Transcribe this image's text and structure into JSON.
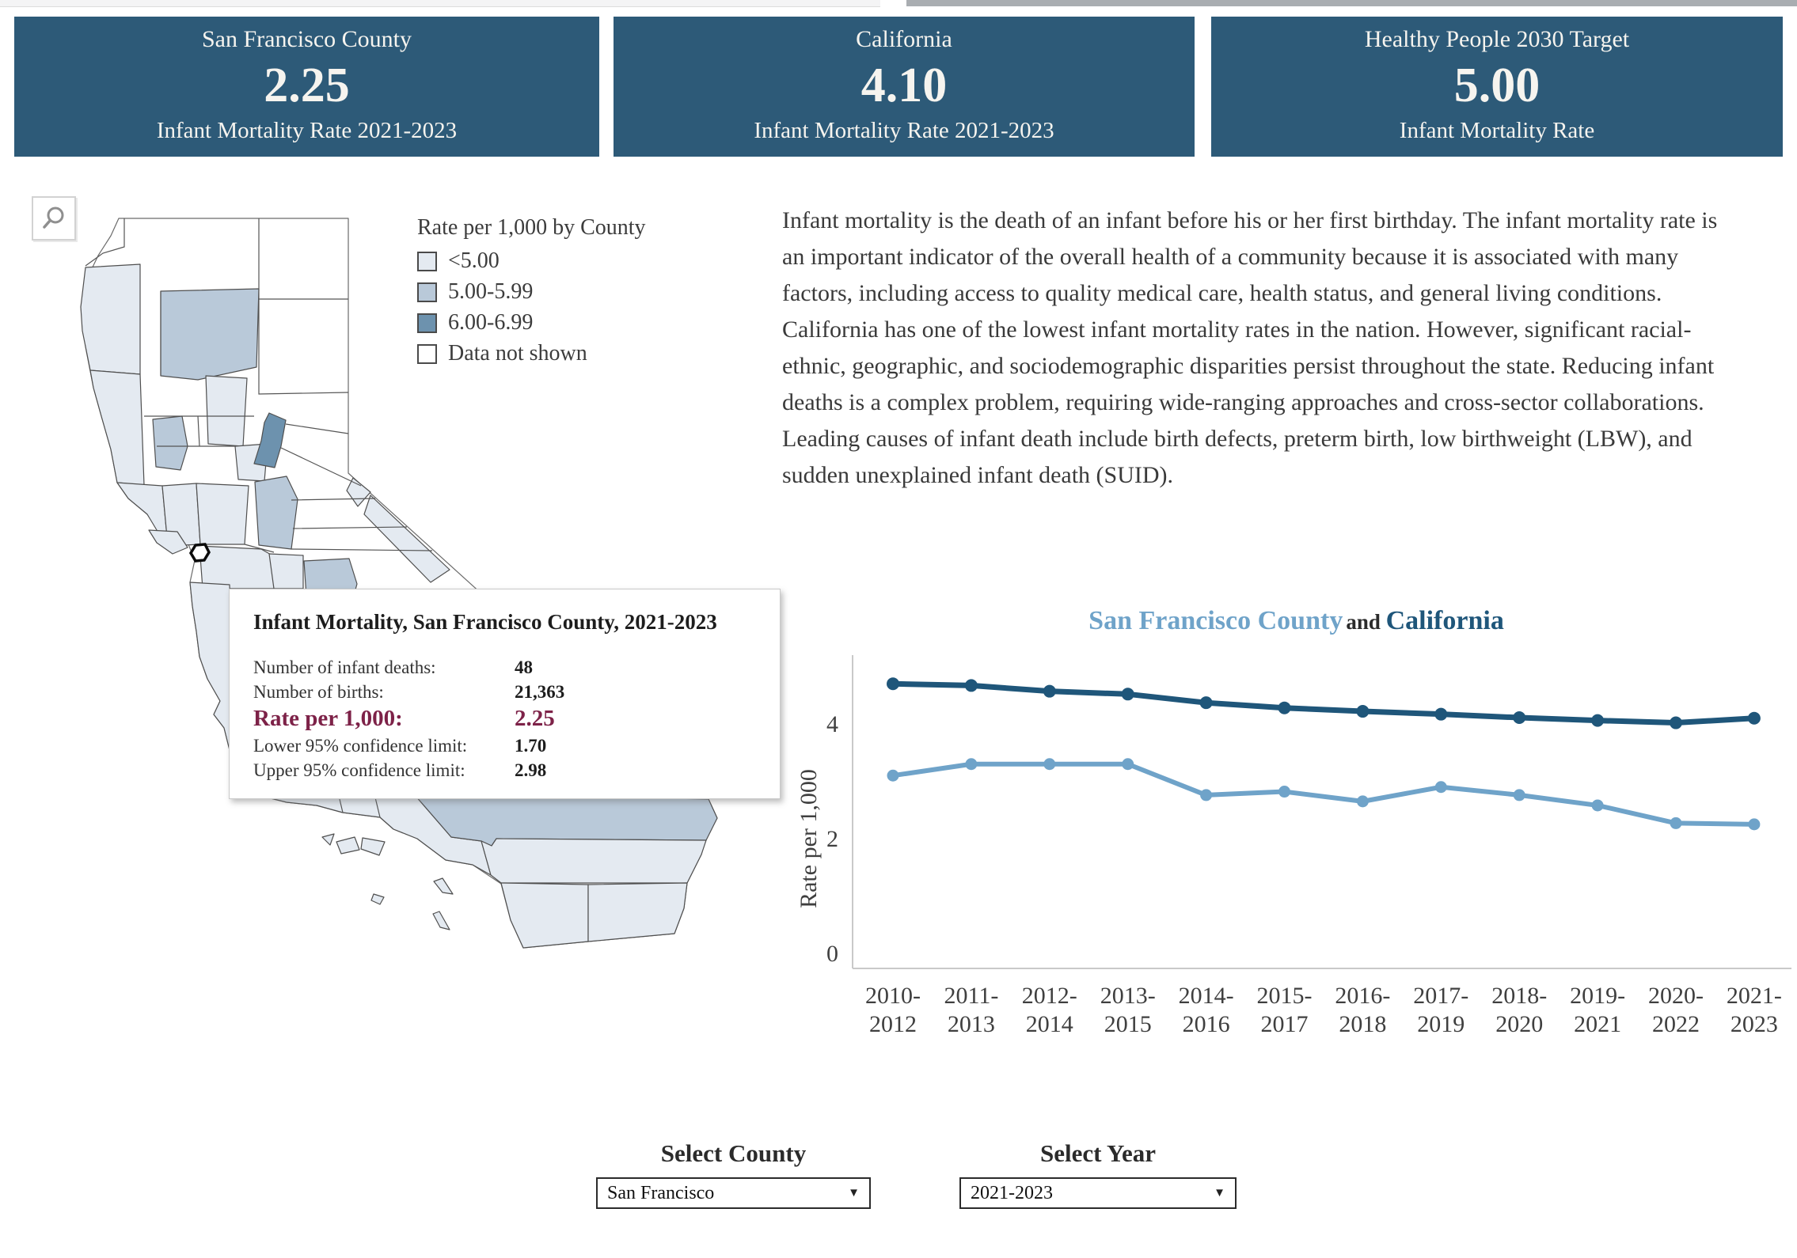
{
  "theme": {
    "card_bg": "#2d5a78",
    "accent_dark": "#1f567a",
    "accent_light": "#6fa3c9",
    "rate_highlight": "#7d2248"
  },
  "top_cards": [
    {
      "title": "San Francisco County",
      "value": "2.25",
      "subtitle": "Infant Mortality Rate 2021-2023"
    },
    {
      "title": "California",
      "value": "4.10",
      "subtitle": "Infant Mortality Rate 2021-2023"
    },
    {
      "title": "Healthy People 2030 Target",
      "value": "5.00",
      "subtitle": "Infant Mortality Rate"
    }
  ],
  "map": {
    "search_icon": "magnifier",
    "legend": {
      "title": "Rate per 1,000 by County",
      "items": [
        {
          "label": "<5.00",
          "color": "#e4eaf1"
        },
        {
          "label": "5.00-5.99",
          "color": "#b9c9d9"
        },
        {
          "label": "6.00-6.99",
          "color": "#6d92ae"
        },
        {
          "label": "Data not shown",
          "color": "#ffffff"
        }
      ]
    },
    "tooltip": {
      "title": "Infant Mortality, San Francisco County, 2021-2023",
      "rows": [
        {
          "label": "Number of infant deaths:",
          "value": "48",
          "highlight": false
        },
        {
          "label": "Number of births:",
          "value": "21,363",
          "highlight": false
        },
        {
          "label": "Rate per 1,000:",
          "value": "2.25",
          "highlight": true
        },
        {
          "label": "Lower 95% confidence limit:",
          "value": "1.70",
          "highlight": false
        },
        {
          "label": "Upper 95% confidence limit:",
          "value": "2.98",
          "highlight": false
        }
      ]
    }
  },
  "description": "Infant mortality is the death of an infant before his or her first birthday. The infant mortality rate is an important indicator of the overall health of a community because it is associated with many factors, including access to quality medical care, health status, and general living conditions. California has one of the lowest infant mortality rates in the nation. However, significant racial-ethnic, geographic, and sociodemographic disparities persist throughout the state. Reducing infant deaths is a complex problem, requiring wide-ranging approaches and cross-sector collaborations. Leading causes of infant death include birth defects, preterm birth, low birthweight (LBW), and sudden unexplained infant death (SUID).",
  "chart_data": {
    "type": "line",
    "title": {
      "series1": "San Francisco County",
      "conjunction": "and",
      "series2": "California"
    },
    "ylabel": "Rate per 1,000",
    "xlabel": "",
    "yticks": [
      0,
      2,
      4
    ],
    "ylim": [
      0,
      5.2
    ],
    "grid": false,
    "legend_position": "in-title",
    "categories": [
      "2010-2012",
      "2011-2013",
      "2012-2014",
      "2013-2015",
      "2014-2016",
      "2015-2017",
      "2016-2018",
      "2017-2019",
      "2018-2020",
      "2019-2021",
      "2020-2022",
      "2021-2023"
    ],
    "series": [
      {
        "name": "California",
        "color": "#1f567a",
        "values": [
          4.7,
          4.67,
          4.57,
          4.52,
          4.37,
          4.28,
          4.22,
          4.17,
          4.11,
          4.06,
          4.02,
          4.1
        ]
      },
      {
        "name": "San Francisco County",
        "color": "#6fa3c9",
        "values": [
          3.1,
          3.3,
          3.3,
          3.3,
          2.76,
          2.82,
          2.65,
          2.9,
          2.76,
          2.58,
          2.27,
          2.25
        ]
      }
    ]
  },
  "filters": {
    "county": {
      "label": "Select County",
      "value": "San Francisco"
    },
    "year": {
      "label": "Select Year",
      "value": "2021-2023"
    }
  }
}
